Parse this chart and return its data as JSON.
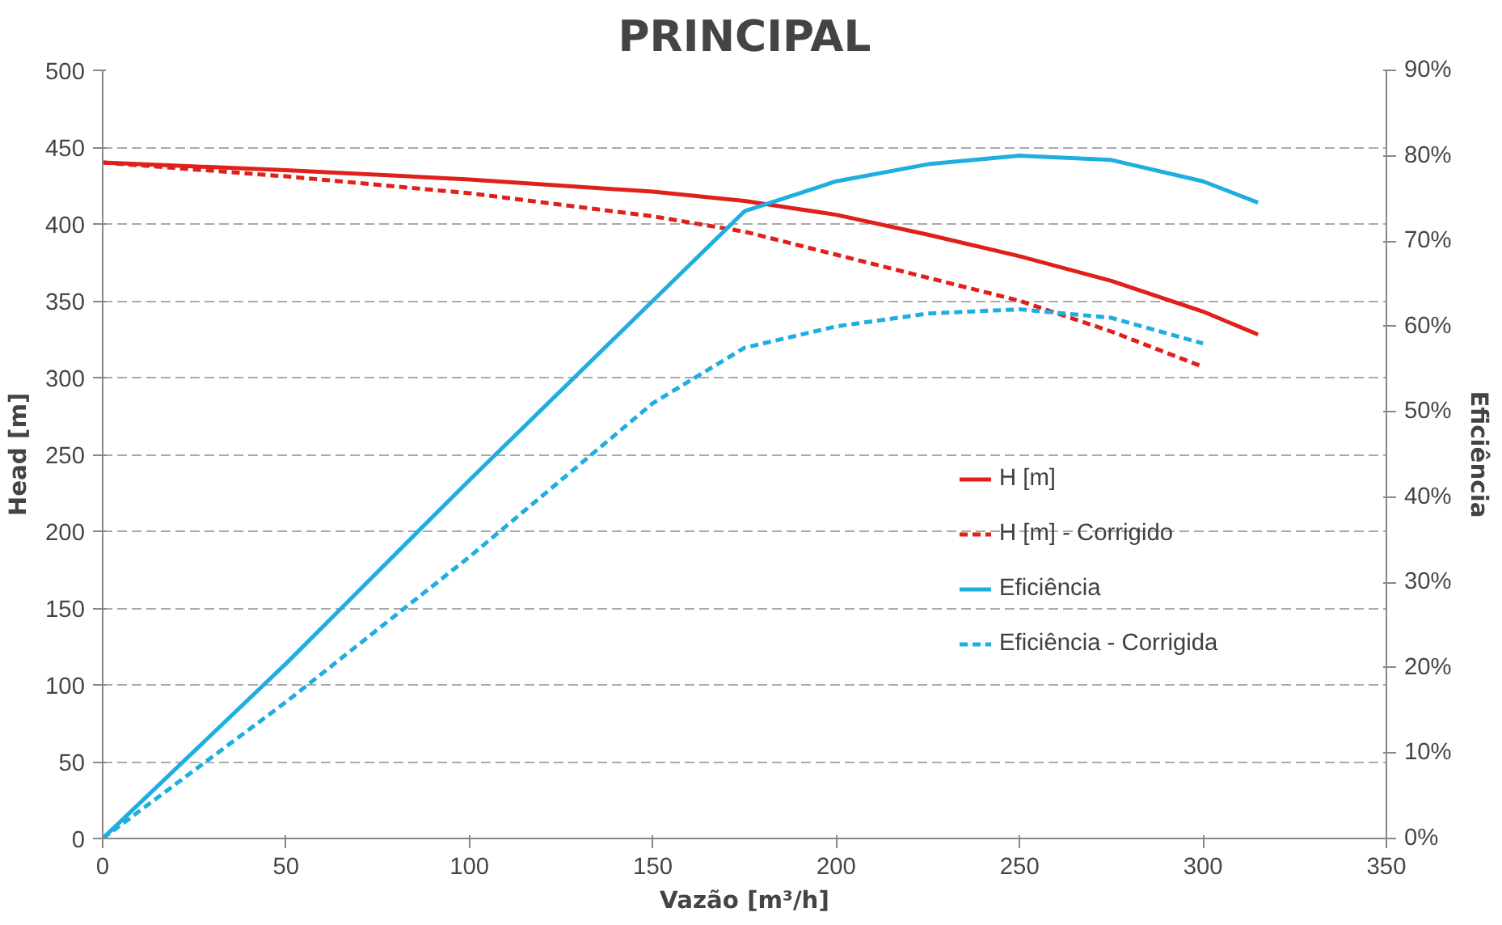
{
  "chart_data": {
    "type": "line",
    "title": "PRINCIPAL",
    "xlabel": "Vazão [m³/h]",
    "ylabel": "Head [m]",
    "y2label": "Eficiência",
    "xlim": [
      0,
      350
    ],
    "xticks": [
      0,
      50,
      100,
      150,
      200,
      250,
      300,
      350
    ],
    "ylim": [
      0,
      500
    ],
    "yticks": [
      0,
      50,
      100,
      150,
      200,
      250,
      300,
      350,
      400,
      450,
      500
    ],
    "y2lim": [
      0,
      90
    ],
    "y2ticks": [
      {
        "value": 0,
        "label": "0%"
      },
      {
        "value": 10,
        "label": "10%"
      },
      {
        "value": 20,
        "label": "20%"
      },
      {
        "value": 30,
        "label": "30%"
      },
      {
        "value": 40,
        "label": "40%"
      },
      {
        "value": 50,
        "label": "50%"
      },
      {
        "value": 60,
        "label": "60%"
      },
      {
        "value": 70,
        "label": "70%"
      },
      {
        "value": 80,
        "label": "80%"
      },
      {
        "value": 90,
        "label": "90%"
      }
    ],
    "grid": "y",
    "legend": "right",
    "series": [
      {
        "name": "H [m]",
        "color": "#e0201b",
        "line_style": "solid",
        "x": [
          0,
          50,
          100,
          150,
          175,
          200,
          225,
          250,
          275,
          300,
          315
        ],
        "values": [
          440,
          435,
          429,
          421,
          415,
          406,
          393,
          379,
          363,
          343,
          328
        ]
      },
      {
        "name": "H [m] - Corrigido",
        "color": "#e0201b",
        "line_style": "dashed",
        "x": [
          0,
          50,
          100,
          150,
          175,
          200,
          225,
          250,
          275,
          300
        ],
        "values": [
          440,
          431,
          420,
          405,
          395,
          380,
          365,
          350,
          330,
          307
        ]
      },
      {
        "name": "Eficiência",
        "color": "#1eaee0",
        "line_style": "solid",
        "axis": "y2",
        "x": [
          0,
          50,
          100,
          150,
          175,
          200,
          225,
          250,
          275,
          300,
          315
        ],
        "values": [
          0,
          20.5,
          42,
          63,
          73.5,
          77,
          79,
          80,
          79.5,
          77,
          74.5
        ]
      },
      {
        "name": "Eficiência - Corrigida",
        "color": "#1eaee0",
        "line_style": "dashed",
        "axis": "y2",
        "x": [
          0,
          50,
          100,
          150,
          175,
          200,
          225,
          250,
          275,
          300
        ],
        "values": [
          0,
          16,
          33,
          51,
          57.5,
          60,
          61.5,
          62,
          61,
          58
        ]
      }
    ]
  }
}
